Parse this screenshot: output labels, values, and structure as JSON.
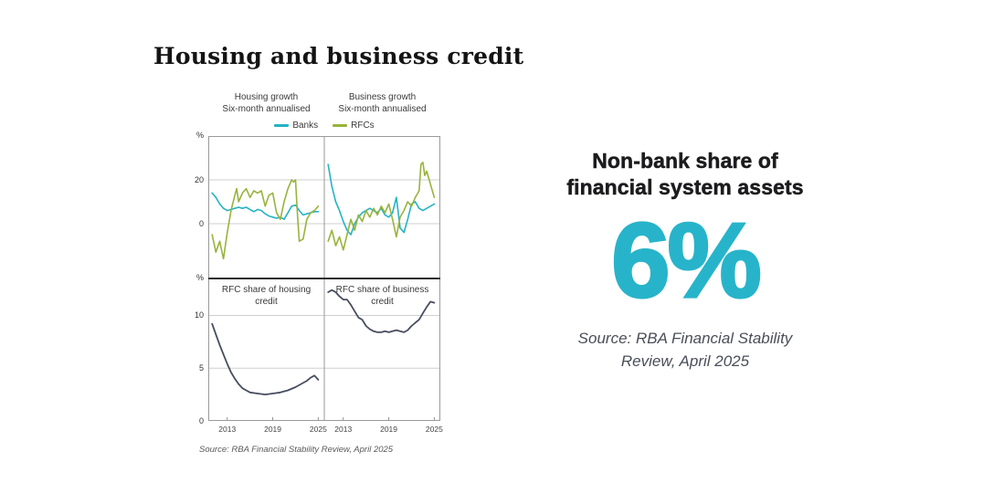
{
  "page": {
    "title": "Housing and business credit",
    "background": "#ffffff"
  },
  "figure": {
    "legend": [
      {
        "label": "Banks",
        "color": "#24b3c5"
      },
      {
        "label": "RFCs",
        "color": "#97b43c"
      }
    ],
    "source": "Source: RBA Financial Stability Review, April 2025"
  },
  "stat": {
    "heading_line1": "Non-bank share of",
    "heading_line2": "financial system assets",
    "value": "6%",
    "value_color": "#27b4ca",
    "source_line1": "Source: RBA Financial Stability",
    "source_line2": "Review, April 2025"
  },
  "chart_data": [
    {
      "type": "line",
      "position": "top-left",
      "title": "Housing growth",
      "subtitle": "Six-month annualised",
      "unit": "%",
      "xlim": [
        2010.5,
        2025.8
      ],
      "xticks": [
        2013,
        2019,
        2025
      ],
      "ylim": [
        -25,
        40
      ],
      "yticks": [
        0,
        20
      ],
      "grid": true,
      "series": [
        {
          "name": "Banks",
          "color": "#24b3c5",
          "x": [
            2011,
            2011.5,
            2012,
            2012.5,
            2013,
            2013.5,
            2014,
            2014.5,
            2015,
            2015.5,
            2016,
            2016.5,
            2017,
            2017.5,
            2018,
            2018.5,
            2019,
            2019.5,
            2020,
            2020.5,
            2021,
            2021.5,
            2022,
            2022.5,
            2023,
            2023.5,
            2024,
            2024.5,
            2025
          ],
          "y": [
            14,
            12,
            9,
            7,
            6,
            6.5,
            7,
            7.5,
            7,
            7.5,
            6.5,
            5.5,
            6.5,
            6,
            4.5,
            3.5,
            3,
            2.5,
            3,
            2,
            5,
            8,
            8.5,
            6,
            4,
            4.5,
            5,
            5.5,
            5.5
          ]
        },
        {
          "name": "RFCs",
          "color": "#97b43c",
          "x": [
            2011,
            2011.5,
            2012,
            2012.5,
            2013,
            2013.5,
            2014,
            2014.25,
            2014.5,
            2015,
            2015.5,
            2016,
            2016.5,
            2017,
            2017.5,
            2018,
            2018.5,
            2019,
            2019.5,
            2020,
            2020.5,
            2021,
            2021.5,
            2021.75,
            2022,
            2022.25,
            2022.5,
            2023,
            2023.5,
            2024,
            2024.5,
            2025
          ],
          "y": [
            -5,
            -13,
            -8,
            -16,
            -4,
            6,
            13,
            16,
            10,
            14,
            16,
            12,
            15,
            14,
            15,
            8,
            13,
            14,
            5,
            2,
            10,
            16,
            20,
            19,
            20,
            5,
            -8,
            -7,
            2,
            5,
            6,
            8
          ]
        }
      ]
    },
    {
      "type": "line",
      "position": "top-right",
      "title": "Business growth",
      "subtitle": "Six-month annualised",
      "xlim": [
        2010.5,
        2025.8
      ],
      "xticks": [
        2013,
        2019,
        2025
      ],
      "ylim": [
        -25,
        40
      ],
      "yticks": [
        0,
        20
      ],
      "grid": true,
      "series": [
        {
          "name": "Banks",
          "color": "#24b3c5",
          "x": [
            2011,
            2011.5,
            2012,
            2012.5,
            2013,
            2013.5,
            2014,
            2014.5,
            2015,
            2015.5,
            2016,
            2016.5,
            2017,
            2017.5,
            2018,
            2018.5,
            2019,
            2019.5,
            2020,
            2020.5,
            2021,
            2021.5,
            2022,
            2022.5,
            2023,
            2023.5,
            2024,
            2024.5,
            2025
          ],
          "y": [
            27,
            17,
            10,
            6,
            1,
            -3,
            -5,
            0,
            3,
            5,
            6,
            7,
            6,
            5,
            7,
            4,
            3,
            5,
            12,
            -2,
            -4,
            2,
            9,
            10,
            7,
            6,
            7,
            8,
            9
          ]
        },
        {
          "name": "RFCs",
          "color": "#97b43c",
          "x": [
            2011,
            2011.5,
            2012,
            2012.5,
            2013,
            2013.5,
            2014,
            2014.5,
            2015,
            2015.5,
            2016,
            2016.5,
            2017,
            2017.5,
            2018,
            2018.5,
            2019,
            2019.5,
            2020,
            2020.5,
            2021,
            2021.5,
            2022,
            2022.5,
            2023,
            2023.25,
            2023.5,
            2023.75,
            2024,
            2024.5,
            2025
          ],
          "y": [
            -8,
            -3,
            -10,
            -6,
            -12,
            -5,
            2,
            -3,
            4,
            1,
            6,
            3,
            7,
            4,
            8,
            5,
            9,
            2,
            -6,
            3,
            6,
            10,
            8,
            12,
            15,
            27,
            28,
            22,
            24,
            18,
            12
          ]
        }
      ]
    },
    {
      "type": "line",
      "position": "bottom-left",
      "title": "RFC share of housing credit",
      "unit": "%",
      "xlim": [
        2010.5,
        2025.8
      ],
      "xticks": [
        2013,
        2019,
        2025
      ],
      "ylim": [
        0,
        13.5
      ],
      "yticks": [
        0,
        5,
        10
      ],
      "grid": true,
      "series": [
        {
          "name": "RFC share",
          "color": "#474d5e",
          "width": 1.8,
          "x": [
            2011,
            2011.5,
            2012,
            2012.5,
            2013,
            2013.5,
            2014,
            2014.5,
            2015,
            2015.5,
            2016,
            2017,
            2018,
            2019,
            2020,
            2021,
            2022,
            2023,
            2023.5,
            2024,
            2024.5,
            2025
          ],
          "y": [
            9.2,
            8.2,
            7.2,
            6.3,
            5.4,
            4.6,
            4.0,
            3.5,
            3.1,
            2.9,
            2.7,
            2.6,
            2.5,
            2.6,
            2.7,
            2.9,
            3.2,
            3.6,
            3.8,
            4.1,
            4.3,
            3.9
          ]
        }
      ]
    },
    {
      "type": "line",
      "position": "bottom-right",
      "title": "RFC share of business credit",
      "xlim": [
        2010.5,
        2025.8
      ],
      "xticks": [
        2013,
        2019,
        2025
      ],
      "ylim": [
        0,
        13.5
      ],
      "yticks": [
        0,
        5,
        10
      ],
      "grid": true,
      "series": [
        {
          "name": "RFC share",
          "color": "#474d5e",
          "width": 1.8,
          "x": [
            2011,
            2011.5,
            2012,
            2012.5,
            2013,
            2013.5,
            2014,
            2014.5,
            2015,
            2015.5,
            2016,
            2016.5,
            2017,
            2017.5,
            2018,
            2018.5,
            2019,
            2019.5,
            2020,
            2020.5,
            2021,
            2021.5,
            2022,
            2022.5,
            2023,
            2023.5,
            2024,
            2024.5,
            2025
          ],
          "y": [
            12.2,
            12.4,
            12.2,
            11.8,
            11.5,
            11.5,
            11.0,
            10.4,
            9.8,
            9.6,
            9.0,
            8.7,
            8.5,
            8.4,
            8.4,
            8.5,
            8.4,
            8.5,
            8.6,
            8.5,
            8.4,
            8.6,
            9.0,
            9.3,
            9.6,
            10.2,
            10.8,
            11.3,
            11.2
          ]
        }
      ]
    }
  ]
}
